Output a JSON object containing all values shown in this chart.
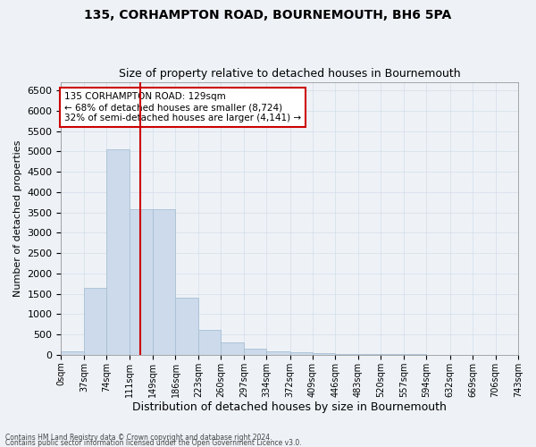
{
  "title": "135, CORHAMPTON ROAD, BOURNEMOUTH, BH6 5PA",
  "subtitle": "Size of property relative to detached houses in Bournemouth",
  "xlabel": "Distribution of detached houses by size in Bournemouth",
  "ylabel": "Number of detached properties",
  "footer_line1": "Contains HM Land Registry data © Crown copyright and database right 2024.",
  "footer_line2": "Contains public sector information licensed under the Open Government Licence v3.0.",
  "bin_edges": [
    0,
    37,
    74,
    111,
    149,
    186,
    223,
    260,
    297,
    334,
    372,
    409,
    446,
    483,
    520,
    557,
    594,
    632,
    669,
    706,
    743
  ],
  "bin_labels": [
    "0sqm",
    "37sqm",
    "74sqm",
    "111sqm",
    "149sqm",
    "186sqm",
    "223sqm",
    "260sqm",
    "297sqm",
    "334sqm",
    "372sqm",
    "409sqm",
    "446sqm",
    "483sqm",
    "520sqm",
    "557sqm",
    "594sqm",
    "632sqm",
    "669sqm",
    "706sqm",
    "743sqm"
  ],
  "bar_heights": [
    75,
    1640,
    5050,
    3580,
    3580,
    1400,
    620,
    310,
    140,
    80,
    55,
    35,
    20,
    15,
    10,
    8,
    5,
    3,
    3,
    2
  ],
  "bar_color": "#ccdaeb",
  "bar_edge_color": "#a8bfd4",
  "vline_x": 129,
  "vline_color": "#cc0000",
  "ylim": [
    0,
    6700
  ],
  "yticks": [
    0,
    500,
    1000,
    1500,
    2000,
    2500,
    3000,
    3500,
    4000,
    4500,
    5000,
    5500,
    6000,
    6500
  ],
  "annotation_title": "135 CORHAMPTON ROAD: 129sqm",
  "annotation_line2": "← 68% of detached houses are smaller (8,724)",
  "annotation_line3": "32% of semi-detached houses are larger (4,141) →",
  "annotation_box_facecolor": "#ffffff",
  "annotation_box_edgecolor": "#cc0000",
  "grid_color": "#d4dde8",
  "background_color": "#eef2f7",
  "title_fontsize": 10,
  "subtitle_fontsize": 9,
  "ylabel_fontsize": 8,
  "xlabel_fontsize": 9,
  "tick_fontsize": 8,
  "xtick_fontsize": 7
}
